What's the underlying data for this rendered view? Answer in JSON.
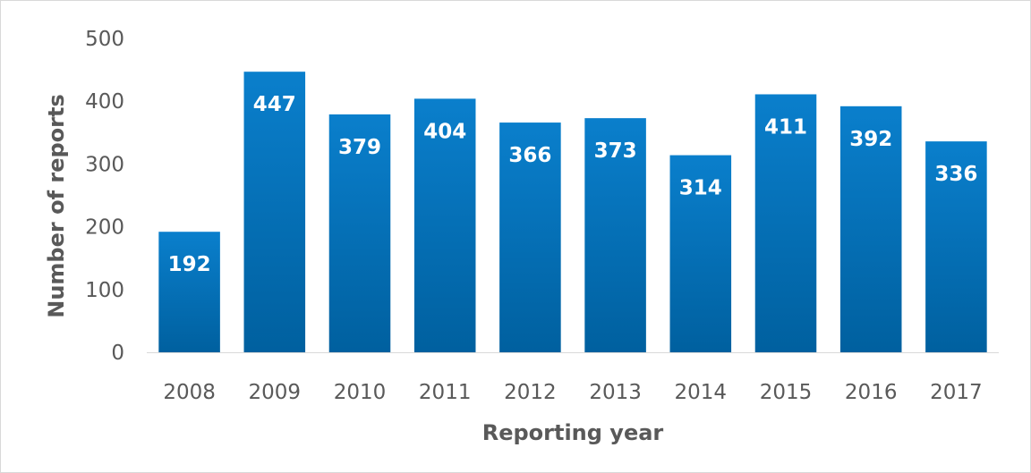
{
  "chart_data": {
    "type": "bar",
    "title": "",
    "categories": [
      "2008",
      "2009",
      "2010",
      "2011",
      "2012",
      "2013",
      "2014",
      "2015",
      "2016",
      "2017"
    ],
    "values": [
      192,
      447,
      379,
      404,
      366,
      373,
      314,
      411,
      392,
      336
    ],
    "xlabel": "Reporting year",
    "ylabel": "Number of reports",
    "ylim": [
      0,
      500
    ],
    "yticks": [
      0,
      100,
      200,
      300,
      400,
      500
    ],
    "grid": false,
    "legend": "none",
    "data_labels": "inside-end",
    "colors": {
      "bar_top": "#0a7fcc",
      "bar_bottom": "#00609f",
      "data_label": "#ffffff",
      "axis_text": "#595959",
      "baseline": "#d9d9d9"
    }
  }
}
